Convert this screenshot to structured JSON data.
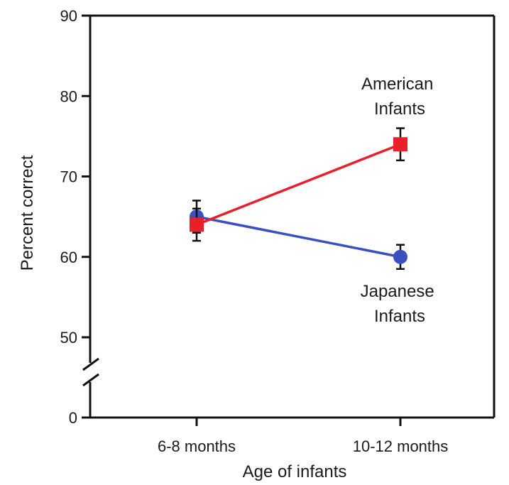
{
  "chart_data": {
    "type": "line",
    "title": "",
    "xlabel": "Age of infants",
    "ylabel": "Percent correct",
    "categories": [
      "6-8 months",
      "10-12 months"
    ],
    "yticks": [
      0,
      50,
      60,
      70,
      80,
      90
    ],
    "ylim": [
      50,
      90
    ],
    "y_axis_break": true,
    "grid": false,
    "legend": "none",
    "series": [
      {
        "name": "American Infants",
        "label_lines": [
          "American",
          "Infants"
        ],
        "values": [
          64,
          74
        ],
        "errors": [
          2,
          2
        ],
        "color": "#e8202a",
        "marker": "square"
      },
      {
        "name": "Japanese Infants",
        "label_lines": [
          "Japanese",
          "Infants"
        ],
        "values": [
          65,
          60
        ],
        "errors": [
          2,
          1.5
        ],
        "color": "#3a4fc0",
        "marker": "circle"
      }
    ]
  }
}
